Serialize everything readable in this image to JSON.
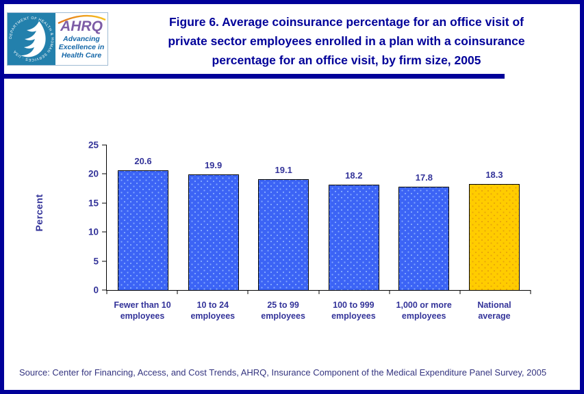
{
  "page": {
    "background": "#FFFFFF",
    "border_color": "#000099"
  },
  "header": {
    "logo": {
      "hhs_seal_ring_text": "DEPARTMENT OF HEALTH & HUMAN SERVICES · USA",
      "ahrq_acronym": "AHRQ",
      "tagline_lines": [
        "Advancing",
        "Excellence in",
        "Health Care"
      ]
    },
    "title_lines": [
      "Figure 6. Average coinsurance percentage for an office visit of",
      "private sector employees enrolled in a plan with a coinsurance",
      "percentage for an office visit, by firm size, 2005"
    ]
  },
  "chart_data": {
    "type": "bar",
    "title": "Figure 6. Average coinsurance percentage for an office visit of private sector employees enrolled in a plan with a coinsurance percentage for an office visit, by firm size, 2005",
    "categories": [
      [
        "Fewer than 10",
        "employees"
      ],
      [
        "10 to 24",
        "employees"
      ],
      [
        "25 to 99",
        "employees"
      ],
      [
        "100 to 999",
        "employees"
      ],
      [
        "1,000 or more",
        "employees"
      ],
      [
        "National",
        "average"
      ]
    ],
    "values": [
      20.6,
      19.9,
      19.1,
      18.2,
      17.8,
      18.3
    ],
    "bar_colors": [
      "#3C64F5",
      "#3C64F5",
      "#3C64F5",
      "#3C64F5",
      "#3C64F5",
      "#FFCC00"
    ],
    "bar_dot_colors": [
      "#86ABFF",
      "#86ABFF",
      "#86ABFF",
      "#86ABFF",
      "#86ABFF",
      "#E8A60A"
    ],
    "xlabel": "",
    "ylabel": "Percent",
    "ylim": [
      0,
      25
    ],
    "yticks": [
      0,
      5,
      10,
      15,
      20,
      25
    ],
    "grid": false,
    "legend": "none",
    "highlight_category": "National average"
  },
  "source_note": "Source: Center for Financing, Access, and Cost Trends, AHRQ, Insurance Component of the Medical Expenditure Panel Survey, 2005",
  "colors": {
    "title_navy": "#000099",
    "chart_text_navy": "#333399",
    "axis_black": "#000000",
    "bar_blue": "#3C64F5",
    "bar_gold": "#FFCC00",
    "hhs_teal": "#2380AC",
    "ahrq_purple": "#7D5CA6",
    "tagline_blue": "#1467A8",
    "arc_orange": "#E2751D"
  }
}
